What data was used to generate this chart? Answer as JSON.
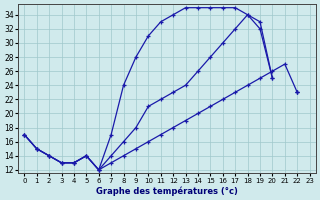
{
  "background_color": "#d0eaec",
  "grid_color": "#a0c8cc",
  "line_color": "#1a1aaa",
  "xlabel": "Graphe des températures (°c)",
  "xlim_min": -0.5,
  "xlim_max": 23.5,
  "ylim_min": 11.5,
  "ylim_max": 35.5,
  "xticks": [
    0,
    1,
    2,
    3,
    4,
    5,
    6,
    7,
    8,
    9,
    10,
    11,
    12,
    13,
    14,
    15,
    16,
    17,
    18,
    19,
    20,
    21,
    22,
    23
  ],
  "yticks": [
    12,
    14,
    16,
    18,
    20,
    22,
    24,
    26,
    28,
    30,
    32,
    34
  ],
  "hours": [
    0,
    1,
    2,
    3,
    4,
    5,
    6,
    7,
    8,
    9,
    10,
    11,
    12,
    13,
    14,
    15,
    16,
    17,
    18,
    19,
    20,
    21,
    22,
    23
  ],
  "line1": [
    17,
    15,
    14,
    13,
    13,
    14,
    12,
    17,
    24,
    28,
    31,
    33,
    34,
    35,
    35,
    35,
    35,
    35,
    34,
    33,
    25,
    null,
    23,
    null
  ],
  "line2": [
    17,
    15,
    14,
    13,
    13,
    14,
    12,
    14,
    16,
    18,
    21,
    22,
    23,
    24,
    26,
    28,
    30,
    32,
    34,
    32,
    25,
    null,
    23,
    null
  ],
  "line3": [
    17,
    15,
    14,
    13,
    13,
    14,
    12,
    13,
    14,
    15,
    16,
    17,
    18,
    19,
    20,
    21,
    22,
    23,
    24,
    25,
    26,
    27,
    23,
    null
  ]
}
